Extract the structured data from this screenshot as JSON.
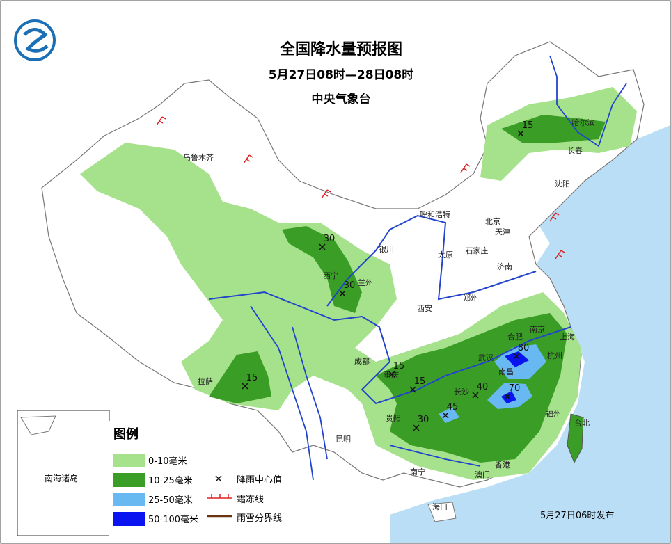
{
  "header": {
    "title": "全国降水量预报图",
    "period": "5月27日08时—28日08时",
    "issuer": "中央气象台"
  },
  "cities": [
    "乌鲁木齐",
    "哈尔滨",
    "长春",
    "沈阳",
    "呼和浩特",
    "北京",
    "天津",
    "银川",
    "石家庄",
    "太原",
    "济南",
    "西宁",
    "兰州",
    "郑州",
    "西安",
    "南京",
    "合肥",
    "上海",
    "成都",
    "武汉",
    "杭州",
    "南昌",
    "重庆",
    "拉萨",
    "长沙",
    "福州",
    "贵阳",
    "台北",
    "昆明",
    "南宁",
    "香港",
    "澳门",
    "海口"
  ],
  "rain_centers": [
    15,
    30,
    30,
    15,
    15,
    15,
    80,
    40,
    70,
    45,
    30
  ],
  "inset_label": "南海诸岛",
  "legend": {
    "title": "图例",
    "areas": [
      {
        "label": "0-10毫米",
        "color": "#a6e28c"
      },
      {
        "label": "10-25毫米",
        "color": "#3a9e26"
      },
      {
        "label": "25-50毫米",
        "color": "#68b8f2"
      },
      {
        "label": "50-100毫米",
        "color": "#0a14f0"
      }
    ],
    "symbols": [
      "降雨中心值",
      "霜冻线",
      "雨雪分界线"
    ]
  },
  "footer": "5月27日06时发布"
}
